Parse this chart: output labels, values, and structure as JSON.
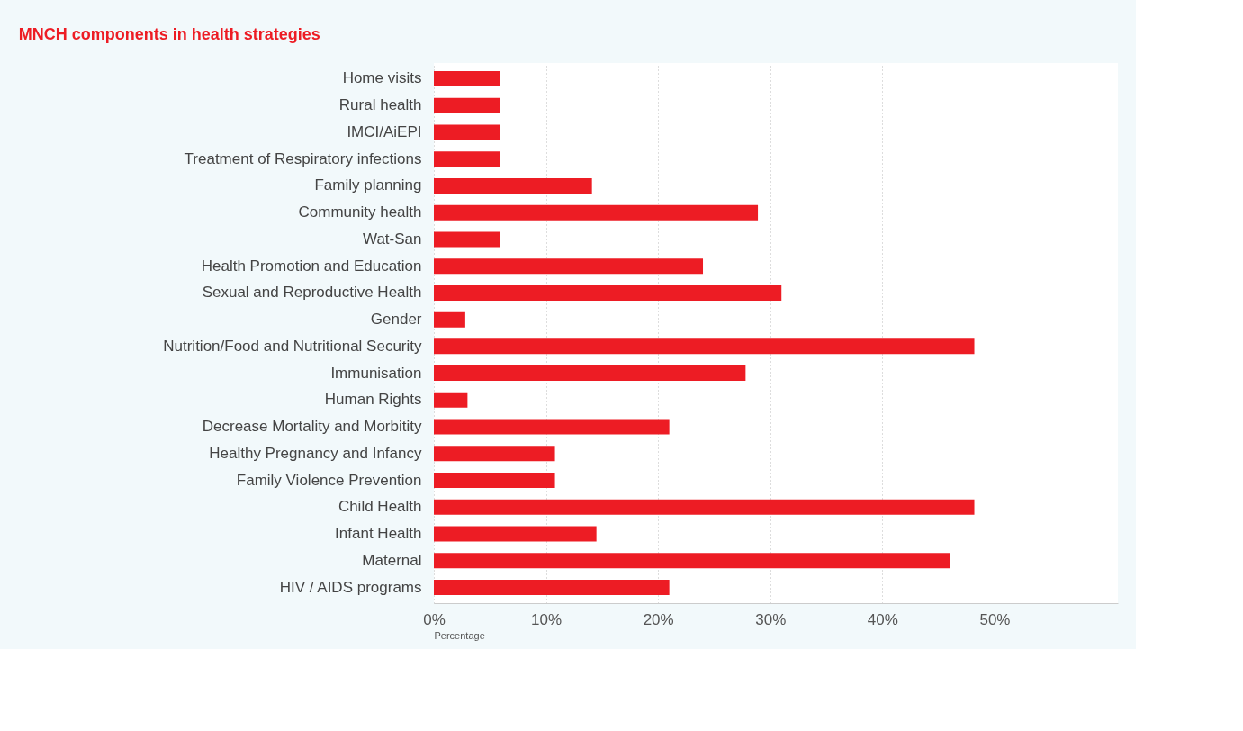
{
  "chart_data": {
    "type": "bar",
    "orientation": "horizontal",
    "title": "MNCH components in health strategies",
    "xlabel": "Percentage",
    "categories": [
      "Home visits",
      "Rural health",
      "IMCI/AiEPI",
      "Treatment of Respiratory infections",
      "Family planning",
      "Community health",
      "Wat-San",
      "Health  Promotion and Education",
      "Sexual and Reproductive Health",
      "Gender",
      "Nutrition/Food and Nutritional Security",
      "Immunisation",
      "Human Rights",
      "Decrease Mortality and Morbitity",
      "Healthy Pregnancy and Infancy",
      "Family Violence Prevention",
      "Child Health",
      "Infant Health",
      "Maternal",
      "HIV / AIDS programs"
    ],
    "values": [
      5.9,
      5.9,
      5.9,
      5.9,
      14.1,
      28.9,
      5.9,
      24.0,
      31.0,
      2.8,
      48.2,
      27.8,
      3.0,
      21.0,
      10.8,
      10.8,
      48.2,
      14.5,
      46.0,
      21.0
    ],
    "color": "#ed1c24",
    "xlim": [
      0,
      61
    ],
    "xticks": [
      {
        "value": 0,
        "label": "0%"
      },
      {
        "value": 10,
        "label": "10%"
      },
      {
        "value": 20,
        "label": "20%"
      },
      {
        "value": 30,
        "label": "30%"
      },
      {
        "value": 40,
        "label": "40%"
      },
      {
        "value": 50,
        "label": "50%"
      }
    ],
    "grid": "x"
  }
}
